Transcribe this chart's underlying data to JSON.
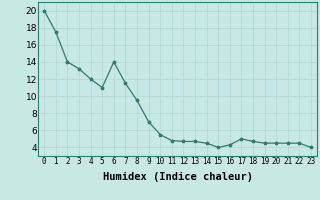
{
  "x": [
    0,
    1,
    2,
    3,
    4,
    5,
    6,
    7,
    8,
    9,
    10,
    11,
    12,
    13,
    14,
    15,
    16,
    17,
    18,
    19,
    20,
    21,
    22,
    23
  ],
  "y": [
    20,
    17.5,
    14,
    13.2,
    12,
    11,
    14,
    11.5,
    9.5,
    7,
    5.5,
    4.8,
    4.7,
    4.7,
    4.5,
    4,
    4.3,
    5,
    4.7,
    4.5,
    4.5,
    4.5,
    4.5,
    4
  ],
  "xlabel": "Humidex (Indice chaleur)",
  "xlim": [
    -0.5,
    23.5
  ],
  "ylim": [
    3.0,
    21.0
  ],
  "yticks": [
    4,
    6,
    8,
    10,
    12,
    14,
    16,
    18,
    20
  ],
  "xticks": [
    0,
    1,
    2,
    3,
    4,
    5,
    6,
    7,
    8,
    9,
    10,
    11,
    12,
    13,
    14,
    15,
    16,
    17,
    18,
    19,
    20,
    21,
    22,
    23
  ],
  "line_color": "#2e7d6e",
  "bg_color": "#c8e8e4",
  "grid_color": "#b0d8d2",
  "marker": "*",
  "marker_size": 2.5,
  "linewidth": 0.9,
  "xlabel_fontsize": 7.5,
  "xlabel_fontweight": "bold",
  "tick_fontsize": 5.5,
  "ytick_fontsize": 6.5
}
